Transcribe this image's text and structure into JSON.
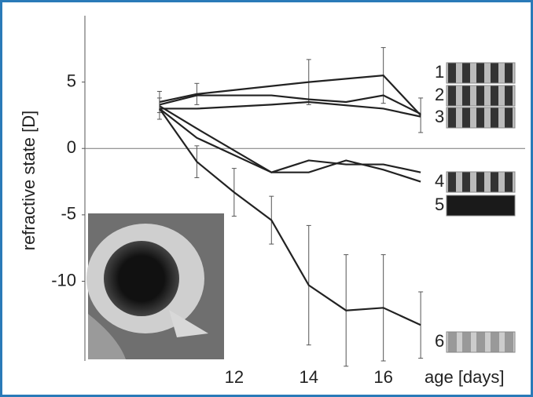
{
  "chart_data": {
    "type": "line",
    "ylabel": "refractive state [D]",
    "xlabel": "age [days]",
    "xlim": [
      8,
      19.8
    ],
    "xticks": [
      12,
      14,
      16
    ],
    "ylim": [
      -16,
      10
    ],
    "yticks": [
      5,
      0,
      -5,
      -10
    ],
    "zero_line": true,
    "series": [
      {
        "name": "1",
        "color": "#222222",
        "x": [
          10,
          11,
          14,
          16,
          17
        ],
        "values": [
          3.5,
          4.1,
          5,
          5.5,
          2.5
        ],
        "errors": [
          0.8,
          0.8,
          1.7,
          2.1,
          1.3
        ]
      },
      {
        "name": "2",
        "color": "#222222",
        "x": [
          10,
          11,
          13,
          14,
          15,
          16,
          17
        ],
        "values": [
          3.3,
          4.0,
          4.0,
          3.7,
          3.5,
          4.0,
          2.6
        ]
      },
      {
        "name": "3",
        "color": "#222222",
        "x": [
          10,
          11,
          13,
          14,
          16,
          17
        ],
        "values": [
          3.0,
          3.0,
          3.3,
          3.5,
          3.0,
          2.4
        ]
      },
      {
        "name": "4",
        "color": "#222222",
        "x": [
          10,
          11,
          13,
          14,
          15,
          16,
          17
        ],
        "values": [
          3.2,
          1.5,
          -1.8,
          -0.9,
          -1.2,
          -1.2,
          -1.8
        ]
      },
      {
        "name": "5",
        "color": "#222222",
        "x": [
          10,
          11,
          13,
          14,
          15,
          16,
          17
        ],
        "values": [
          3.0,
          0.8,
          -1.8,
          -1.8,
          -0.9,
          -1.6,
          -2.5
        ]
      },
      {
        "name": "6",
        "color": "#222222",
        "x": [
          10,
          11,
          12,
          13,
          14,
          15,
          16,
          17
        ],
        "values": [
          3.0,
          -1.0,
          -3.3,
          -5.4,
          -10.3,
          -12.2,
          -12.0,
          -13.3
        ],
        "errors": [
          0.8,
          1.2,
          1.8,
          1.8,
          4.5,
          4.2,
          4.0,
          2.5
        ]
      }
    ]
  }
}
